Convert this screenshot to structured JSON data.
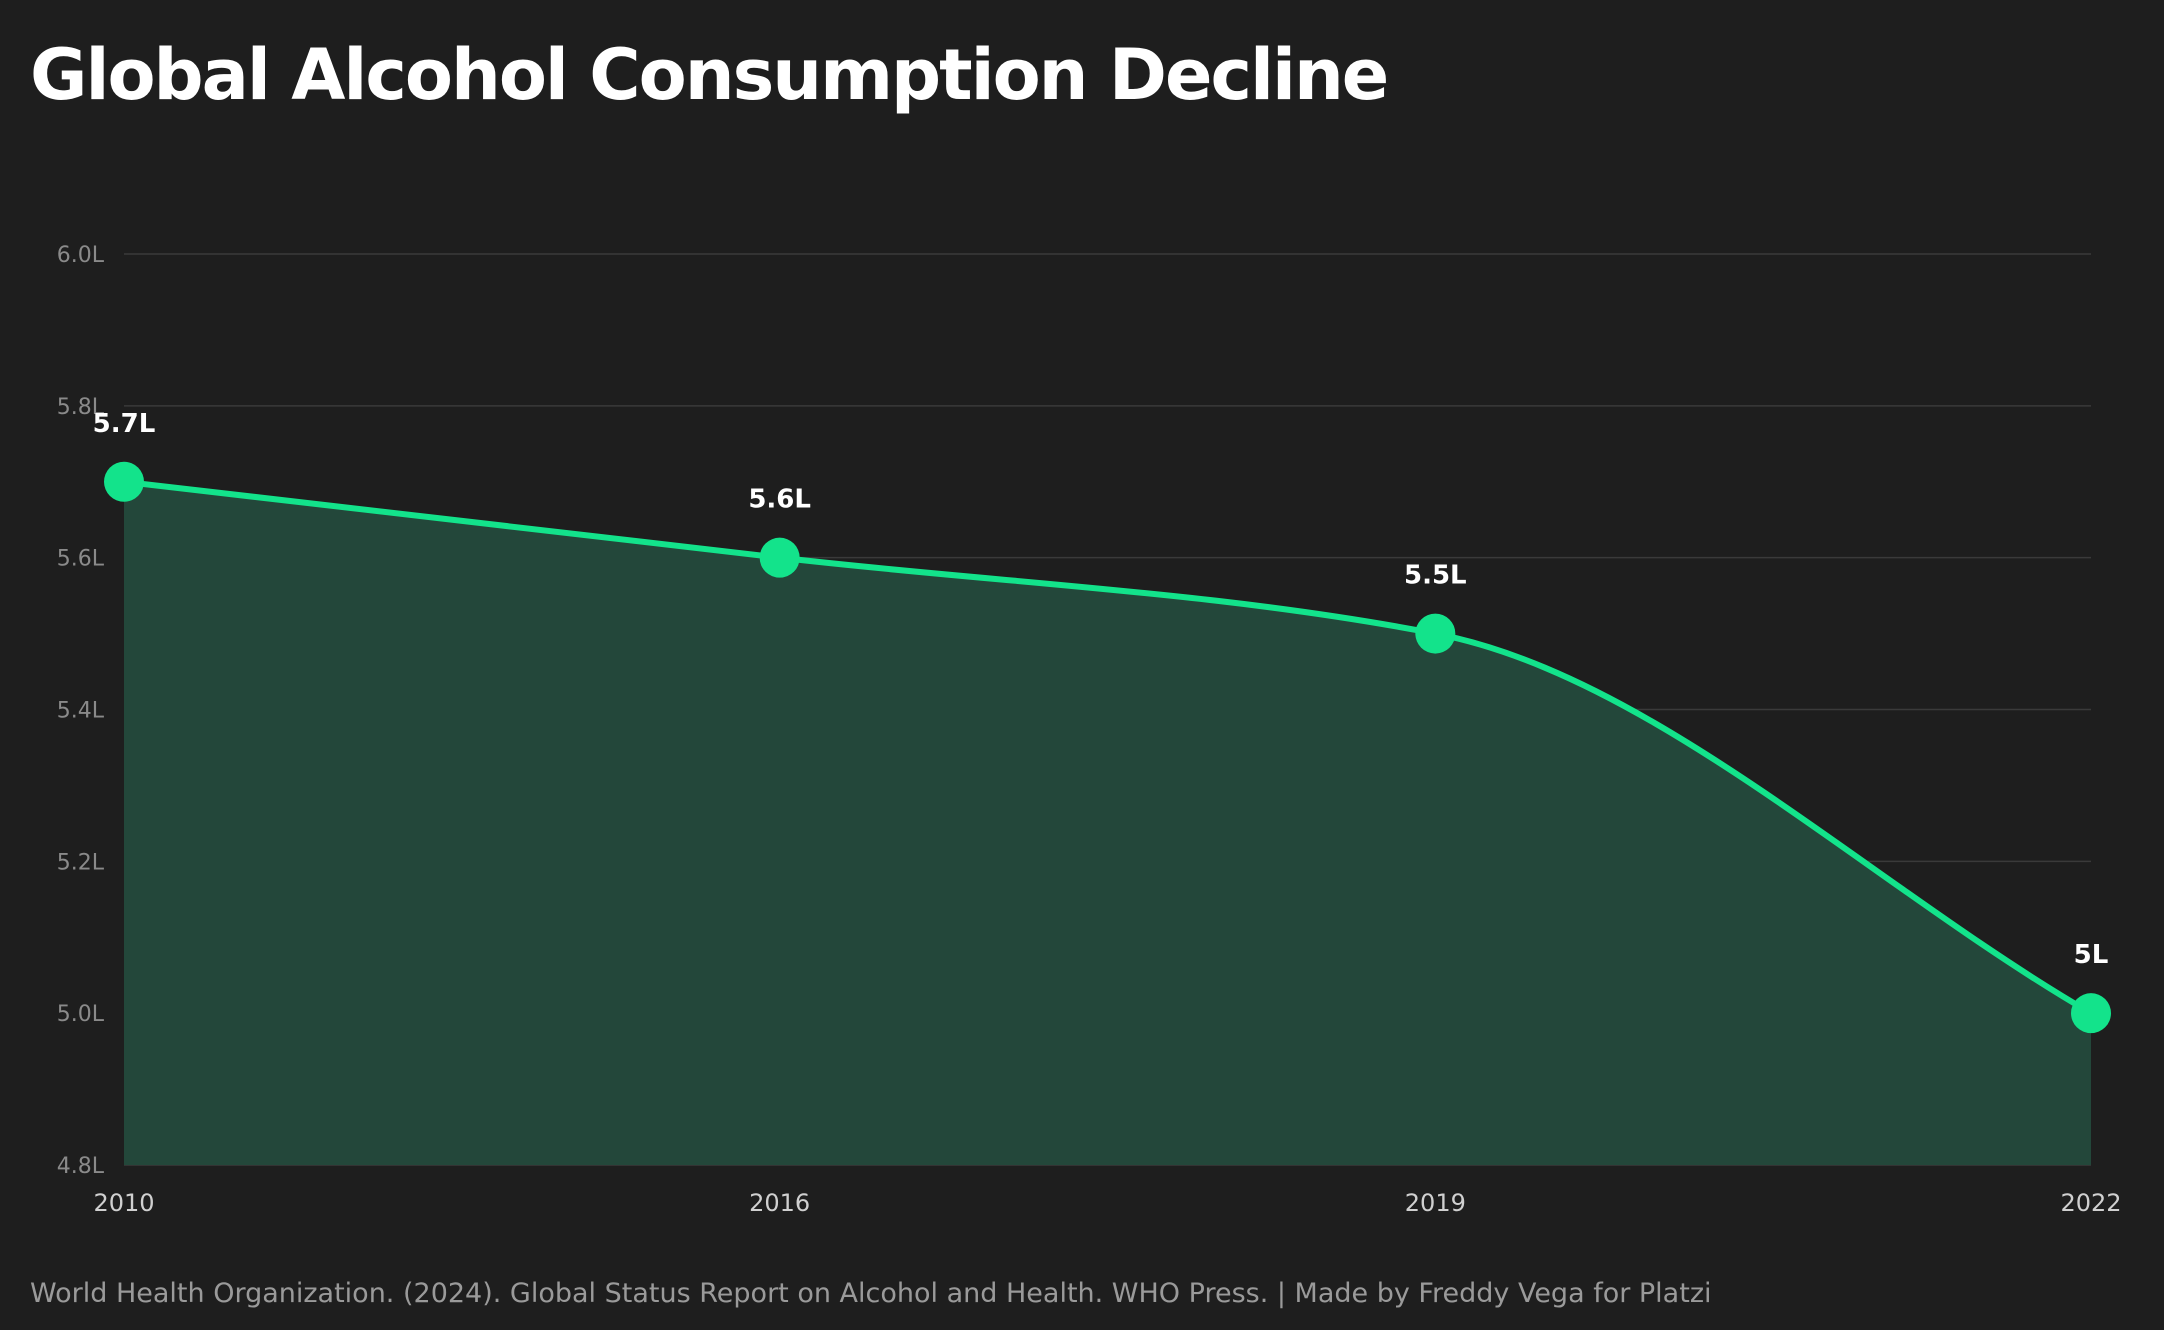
{
  "chart_data": {
    "type": "area",
    "title": "Global Alcohol Consumption Decline",
    "categories": [
      "2010",
      "2016",
      "2019",
      "2022"
    ],
    "values": [
      5.7,
      5.6,
      5.5,
      5.0
    ],
    "data_labels": [
      "5.7L",
      "5.6L",
      "5.5L",
      "5L"
    ],
    "y_ticks": [
      4.8,
      5.0,
      5.2,
      5.4,
      5.6,
      5.8,
      6.0
    ],
    "y_tick_labels": [
      "4.8L",
      "5.0L",
      "5.2L",
      "5.4L",
      "5.6L",
      "5.8L",
      "6.0L"
    ],
    "ylim": [
      4.8,
      6.0
    ],
    "xlabel": "",
    "ylabel": "",
    "grid": true,
    "curve": "smooth-monotone",
    "colors": {
      "line": "#13e38b",
      "fill": "#23473a",
      "background": "#1e1e1e",
      "grid": "#3a3a3a"
    }
  },
  "footer": "World Health Organization. (2024). Global Status Report on Alcohol and Health. WHO Press. | Made by Freddy Vega for Platzi"
}
